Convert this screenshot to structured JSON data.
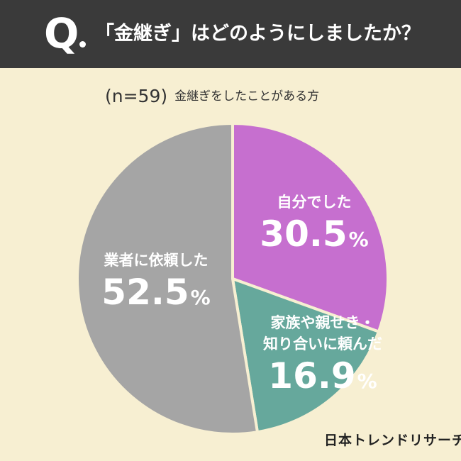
{
  "header": {
    "q_mark": "Q",
    "question": "「金継ぎ」はどのようにしましたか？"
  },
  "sample": {
    "n_label": "(n=59)",
    "description": "金継ぎをしたことがある方"
  },
  "chart_data": {
    "type": "pie",
    "start_angle_deg": 0,
    "direction": "clockwise",
    "slices": [
      {
        "label": "自分でした",
        "value": 30.5,
        "unit": "%",
        "color": "#c66fcf"
      },
      {
        "label_lines": [
          "家族や親せき・",
          "知り合いに頼んだ"
        ],
        "value": 16.9,
        "unit": "%",
        "color": "#66a89c"
      },
      {
        "label": "業者に依頼した",
        "value": 52.5,
        "unit": "%",
        "color": "#a5a5a5"
      }
    ]
  },
  "brand": "日本トレンドリサーチ"
}
